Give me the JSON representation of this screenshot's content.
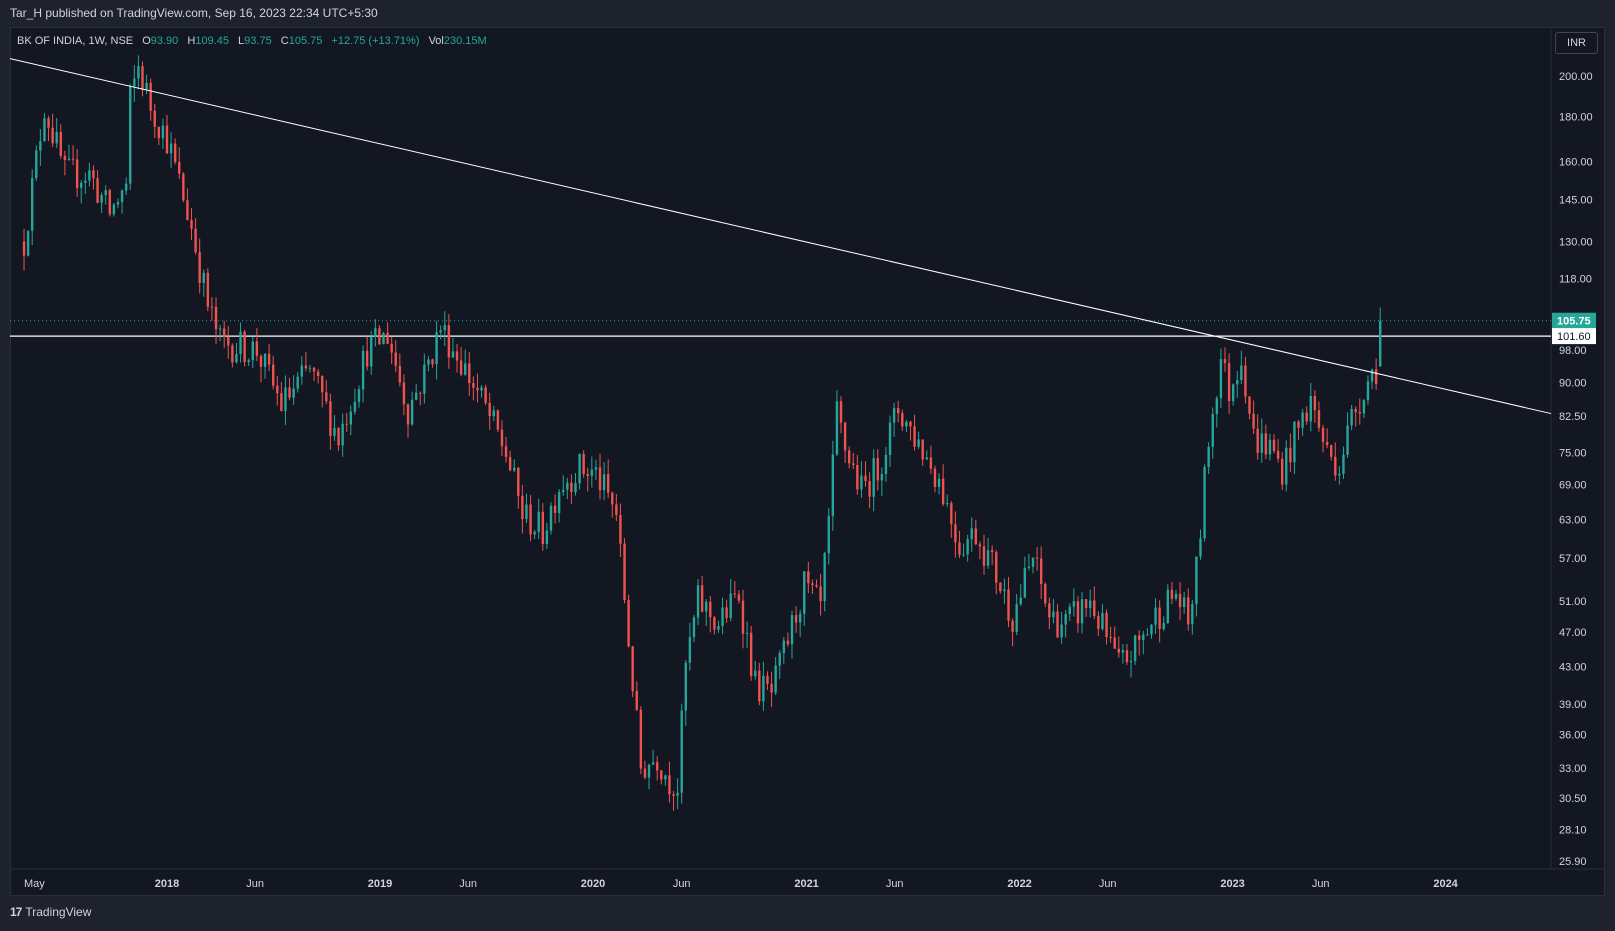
{
  "header": {
    "publisher": "Tar_H published on TradingView.com, Sep 16, 2023 22:34 UTC+5:30"
  },
  "legend": {
    "symbol": "BK OF INDIA, 1W, NSE",
    "o_label": "O",
    "o_value": "93.90",
    "h_label": "H",
    "h_value": "109.45",
    "l_label": "L",
    "l_value": "93.75",
    "c_label": "C",
    "c_value": "105.75",
    "change": "+12.75 (+13.71%)",
    "vol_label": "Vol",
    "vol_value": "230.15M"
  },
  "currency_button": "INR",
  "footer": {
    "brand": "TradingView",
    "logo_icon": "tradingview-logo-icon"
  },
  "colors": {
    "up": "#26a69a",
    "down": "#ef5350",
    "background": "#131722",
    "text": "#d1d4dc",
    "line": "#ffffff"
  },
  "chart_data": {
    "type": "candlestick",
    "timeframe": "1W",
    "price_scale": "log",
    "y_ticks": [
      "200.00",
      "180.00",
      "160.00",
      "145.00",
      "130.00",
      "118.00",
      "98.00",
      "90.00",
      "82.50",
      "75.00",
      "69.00",
      "63.00",
      "57.00",
      "51.00",
      "47.00",
      "43.00",
      "39.00",
      "36.00",
      "33.00",
      "30.50",
      "28.10",
      "25.90"
    ],
    "x_ticks": [
      "May",
      "2018",
      "Jun",
      "2019",
      "Jun",
      "2020",
      "Jun",
      "2021",
      "Jun",
      "2022",
      "Jun",
      "2023",
      "Jun",
      "2024"
    ],
    "last_price": "105.75",
    "horizontal_level": "101.60",
    "ohlc_anchors": [
      {
        "date": "2017-05-01",
        "close": 130
      },
      {
        "date": "2017-06-05",
        "close": 185
      },
      {
        "date": "2017-07-10",
        "close": 155
      },
      {
        "date": "2017-08-21",
        "close": 155
      },
      {
        "date": "2017-09-25",
        "close": 140
      },
      {
        "date": "2017-10-23",
        "close": 150
      },
      {
        "date": "2017-10-30",
        "close": 188
      },
      {
        "date": "2017-11-13",
        "close": 205
      },
      {
        "date": "2017-12-04",
        "close": 185
      },
      {
        "date": "2018-01-01",
        "close": 170
      },
      {
        "date": "2018-02-12",
        "close": 135
      },
      {
        "date": "2018-03-12",
        "close": 110
      },
      {
        "date": "2018-04-02",
        "close": 100
      },
      {
        "date": "2018-06-04",
        "close": 98
      },
      {
        "date": "2018-07-16",
        "close": 85
      },
      {
        "date": "2018-09-03",
        "close": 93
      },
      {
        "date": "2018-10-22",
        "close": 78
      },
      {
        "date": "2018-12-10",
        "close": 98
      },
      {
        "date": "2019-01-14",
        "close": 102
      },
      {
        "date": "2019-02-18",
        "close": 84
      },
      {
        "date": "2019-03-18",
        "close": 92
      },
      {
        "date": "2019-04-15",
        "close": 104
      },
      {
        "date": "2019-05-20",
        "close": 95
      },
      {
        "date": "2019-06-24",
        "close": 86
      },
      {
        "date": "2019-08-05",
        "close": 75
      },
      {
        "date": "2019-09-02",
        "close": 64
      },
      {
        "date": "2019-10-07",
        "close": 61
      },
      {
        "date": "2019-11-04",
        "close": 69
      },
      {
        "date": "2019-12-09",
        "close": 72
      },
      {
        "date": "2020-01-06",
        "close": 71
      },
      {
        "date": "2020-02-10",
        "close": 64
      },
      {
        "date": "2020-03-02",
        "close": 46
      },
      {
        "date": "2020-03-23",
        "close": 33
      },
      {
        "date": "2020-04-20",
        "close": 34
      },
      {
        "date": "2020-05-11",
        "close": 32
      },
      {
        "date": "2020-05-25",
        "close": 31.5
      },
      {
        "date": "2020-06-08",
        "close": 43
      },
      {
        "date": "2020-06-29",
        "close": 51
      },
      {
        "date": "2020-08-03",
        "close": 48
      },
      {
        "date": "2020-09-07",
        "close": 52
      },
      {
        "date": "2020-10-05",
        "close": 41
      },
      {
        "date": "2020-11-02",
        "close": 40
      },
      {
        "date": "2020-11-30",
        "close": 46
      },
      {
        "date": "2020-12-28",
        "close": 53
      },
      {
        "date": "2021-01-25",
        "close": 50
      },
      {
        "date": "2021-02-08",
        "close": 62
      },
      {
        "date": "2021-02-22",
        "close": 83
      },
      {
        "date": "2021-03-08",
        "close": 76
      },
      {
        "date": "2021-04-05",
        "close": 68
      },
      {
        "date": "2021-05-03",
        "close": 72
      },
      {
        "date": "2021-06-07",
        "close": 84
      },
      {
        "date": "2021-07-12",
        "close": 77
      },
      {
        "date": "2021-08-16",
        "close": 70
      },
      {
        "date": "2021-09-20",
        "close": 59
      },
      {
        "date": "2021-10-18",
        "close": 61
      },
      {
        "date": "2021-11-15",
        "close": 56
      },
      {
        "date": "2021-12-20",
        "close": 49
      },
      {
        "date": "2022-01-24",
        "close": 57
      },
      {
        "date": "2022-02-21",
        "close": 49
      },
      {
        "date": "2022-03-21",
        "close": 48
      },
      {
        "date": "2022-05-02",
        "close": 51
      },
      {
        "date": "2022-06-20",
        "close": 43
      },
      {
        "date": "2022-07-18",
        "close": 45
      },
      {
        "date": "2022-08-22",
        "close": 49
      },
      {
        "date": "2022-09-26",
        "close": 52
      },
      {
        "date": "2022-10-17",
        "close": 48
      },
      {
        "date": "2022-10-31",
        "close": 55
      },
      {
        "date": "2022-11-21",
        "close": 78
      },
      {
        "date": "2022-12-12",
        "close": 96
      },
      {
        "date": "2022-12-26",
        "close": 88
      },
      {
        "date": "2023-01-16",
        "close": 97
      },
      {
        "date": "2023-02-06",
        "close": 78
      },
      {
        "date": "2023-03-06",
        "close": 76
      },
      {
        "date": "2023-03-27",
        "close": 72
      },
      {
        "date": "2023-04-17",
        "close": 78
      },
      {
        "date": "2023-05-15",
        "close": 86
      },
      {
        "date": "2023-06-12",
        "close": 75
      },
      {
        "date": "2023-07-03",
        "close": 73
      },
      {
        "date": "2023-07-24",
        "close": 82
      },
      {
        "date": "2023-08-14",
        "close": 89
      },
      {
        "date": "2023-09-04",
        "close": 93.9
      },
      {
        "date": "2023-09-11",
        "open": 93.9,
        "high": 109.45,
        "low": 93.75,
        "close": 105.75
      }
    ],
    "trendline": {
      "from": {
        "date": "2017-06-05",
        "price": 205
      },
      "to": {
        "date": "2023-09-11",
        "price": 92
      }
    }
  }
}
